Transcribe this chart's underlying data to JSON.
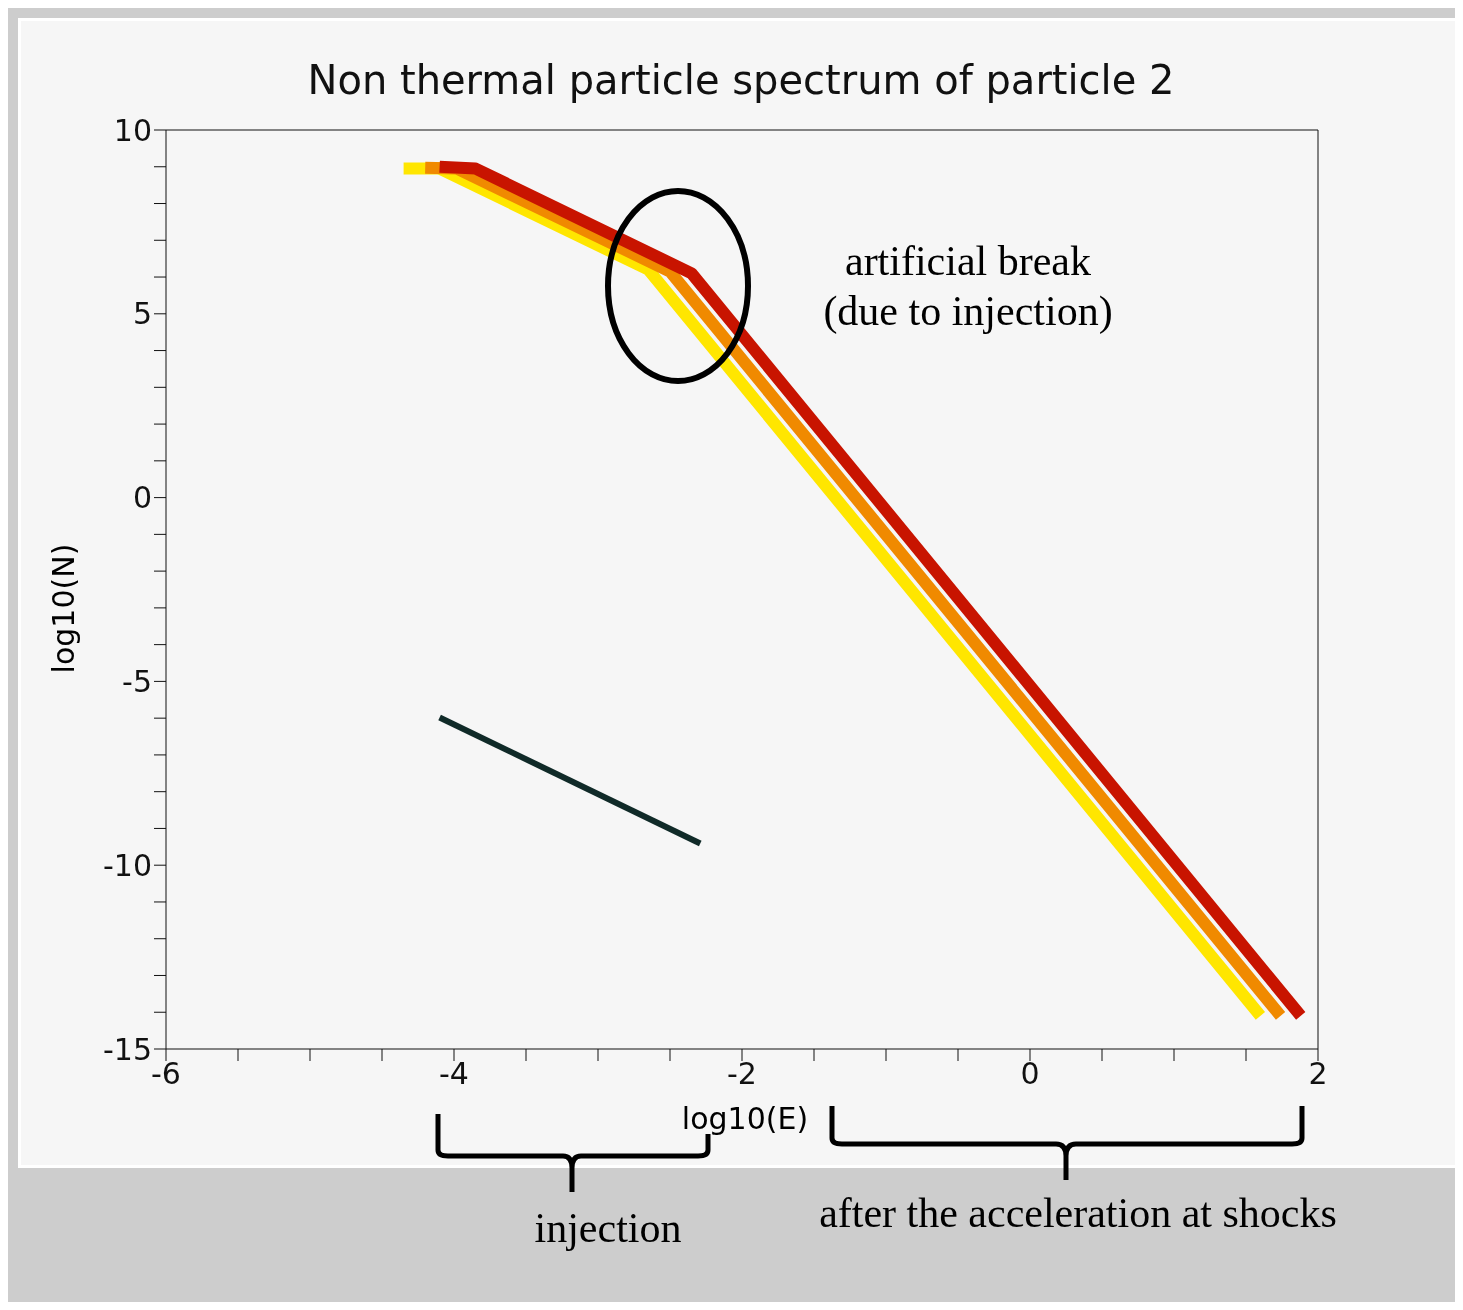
{
  "chart_data": {
    "type": "line",
    "title": "Non thermal particle spectrum of particle 2",
    "xlabel": "log10(E)",
    "ylabel": "log10(N)",
    "series": [
      {
        "color": "#ffe600",
        "x": [
          -4.35,
          -4.1,
          -2.65,
          1.6
        ],
        "values": [
          8.95,
          8.95,
          6.2,
          -14.1
        ]
      },
      {
        "color": "#f08a00",
        "x": [
          -4.2,
          -3.98,
          -2.5,
          1.74
        ],
        "values": [
          8.97,
          8.95,
          6.15,
          -14.1
        ]
      },
      {
        "color": "#c81400",
        "x": [
          -4.1,
          -3.85,
          -2.35,
          1.88
        ],
        "values": [
          9.0,
          8.95,
          6.1,
          -14.1
        ]
      },
      {
        "color": "#102a28",
        "x": [
          -4.1,
          -2.29
        ],
        "values": [
          -5.98,
          -9.41
        ]
      }
    ],
    "xlim": [
      -6,
      2
    ],
    "ylim": [
      -15,
      10
    ],
    "xticks": [
      -6,
      {
        "value": -5.5,
        "label": null
      },
      {
        "value": -5,
        "label": null
      },
      {
        "value": -4.5,
        "label": null
      },
      -4,
      {
        "value": -3.5,
        "label": null
      },
      {
        "value": -3,
        "label": null
      },
      {
        "value": -2.5,
        "label": null
      },
      -2,
      {
        "value": -1.5,
        "label": null
      },
      {
        "value": -1,
        "label": null
      },
      {
        "value": -0.5,
        "label": null
      },
      0,
      {
        "value": 0.5,
        "label": null
      },
      {
        "value": 1,
        "label": null
      },
      {
        "value": 1.5,
        "label": null
      },
      2
    ],
    "yticks": [
      -15,
      {
        "value": -14,
        "label": null
      },
      {
        "value": -13,
        "label": null
      },
      {
        "value": -12,
        "label": null
      },
      {
        "value": -11,
        "label": null
      },
      -10,
      {
        "value": -9,
        "label": null
      },
      {
        "value": -8,
        "label": null
      },
      {
        "value": -7,
        "label": null
      },
      {
        "value": -6,
        "label": null
      },
      -5,
      {
        "value": -4,
        "label": null
      },
      {
        "value": -3,
        "label": null
      },
      {
        "value": -2,
        "label": null
      },
      {
        "value": -1,
        "label": null
      },
      0,
      {
        "value": 1,
        "label": null
      },
      {
        "value": 2,
        "label": null
      },
      {
        "value": 3,
        "label": null
      },
      {
        "value": 4,
        "label": null
      },
      5,
      {
        "value": 6,
        "label": null
      },
      {
        "value": 7,
        "label": null
      },
      {
        "value": 8,
        "label": null
      },
      {
        "value": 9,
        "label": null
      },
      10
    ],
    "annotations": [
      "artificial break\n(due to injection)",
      "injection",
      "after the acceleration at shocks"
    ]
  }
}
